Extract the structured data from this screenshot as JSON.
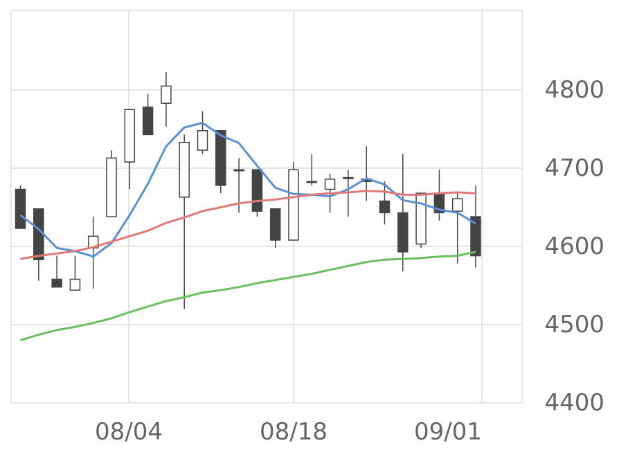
{
  "chart_data": {
    "type": "candlestick",
    "x_ticks": [
      "08/04",
      "08/18",
      "09/01"
    ],
    "y_ticks": [
      "4800",
      "4700",
      "4600",
      "4500",
      "4400"
    ],
    "ylim": [
      4400,
      4850
    ],
    "grid": true,
    "y_axis_side": "right",
    "colors": {
      "up_body": "#ffffff",
      "down_body": "#444444",
      "wick": "#444444",
      "grid": "#dddddd",
      "ma_short": "#5b8fd6",
      "ma_mid": "#e07a7a",
      "ma_long": "#6abf5e"
    },
    "candles": [
      {
        "open": 4673,
        "high": 4678,
        "low": 4623,
        "close": 4623
      },
      {
        "open": 4648,
        "high": 4648,
        "low": 4556,
        "close": 4583
      },
      {
        "open": 4558,
        "high": 4588,
        "low": 4548,
        "close": 4548
      },
      {
        "open": 4544,
        "high": 4588,
        "low": 4544,
        "close": 4558
      },
      {
        "open": 4598,
        "high": 4638,
        "low": 4546,
        "close": 4613
      },
      {
        "open": 4638,
        "high": 4723,
        "low": 4638,
        "close": 4713
      },
      {
        "open": 4708,
        "high": 4775,
        "low": 4673,
        "close": 4775
      },
      {
        "open": 4778,
        "high": 4795,
        "low": 4743,
        "close": 4743
      },
      {
        "open": 4783,
        "high": 4823,
        "low": 4753,
        "close": 4805
      },
      {
        "open": 4663,
        "high": 4743,
        "low": 4520,
        "close": 4733
      },
      {
        "open": 4723,
        "high": 4773,
        "low": 4718,
        "close": 4748
      },
      {
        "open": 4748,
        "high": 4748,
        "low": 4668,
        "close": 4678
      },
      {
        "open": 4698,
        "high": 4713,
        "low": 4643,
        "close": 4698
      },
      {
        "open": 4698,
        "high": 4698,
        "low": 4638,
        "close": 4645
      },
      {
        "open": 4648,
        "high": 4648,
        "low": 4598,
        "close": 4608
      },
      {
        "open": 4608,
        "high": 4708,
        "low": 4608,
        "close": 4698
      },
      {
        "open": 4683,
        "high": 4718,
        "low": 4678,
        "close": 4683
      },
      {
        "open": 4673,
        "high": 4693,
        "low": 4643,
        "close": 4686
      },
      {
        "open": 4688,
        "high": 4698,
        "low": 4638,
        "close": 4688
      },
      {
        "open": 4686,
        "high": 4728,
        "low": 4658,
        "close": 4683
      },
      {
        "open": 4658,
        "high": 4683,
        "low": 4628,
        "close": 4643
      },
      {
        "open": 4643,
        "high": 4718,
        "low": 4568,
        "close": 4593
      },
      {
        "open": 4603,
        "high": 4668,
        "low": 4598,
        "close": 4668
      },
      {
        "open": 4668,
        "high": 4698,
        "low": 4633,
        "close": 4643
      },
      {
        "open": 4645,
        "high": 4668,
        "low": 4578,
        "close": 4661
      },
      {
        "open": 4638,
        "high": 4678,
        "low": 4573,
        "close": 4588
      }
    ],
    "series": [
      {
        "values": [
          4640,
          4622,
          4598,
          4594,
          4587,
          4604,
          4640,
          4680,
          4728,
          4752,
          4758,
          4742,
          4732,
          4703,
          4675,
          4667,
          4666,
          4664,
          4673,
          4687,
          4679,
          4659,
          4655,
          4647,
          4643,
          4629
        ]
      },
      {
        "values": [
          4584,
          4588,
          4591,
          4594,
          4599,
          4606,
          4613,
          4620,
          4630,
          4637,
          4645,
          4650,
          4655,
          4658,
          4660,
          4663,
          4666,
          4668,
          4669,
          4671,
          4670,
          4666,
          4666,
          4668,
          4669,
          4668
        ]
      },
      {
        "values": [
          4480,
          4487,
          4493,
          4497,
          4502,
          4508,
          4516,
          4523,
          4530,
          4535,
          4541,
          4544,
          4548,
          4553,
          4557,
          4561,
          4565,
          4570,
          4575,
          4580,
          4583,
          4584,
          4585,
          4587,
          4588,
          4593
        ]
      }
    ]
  }
}
